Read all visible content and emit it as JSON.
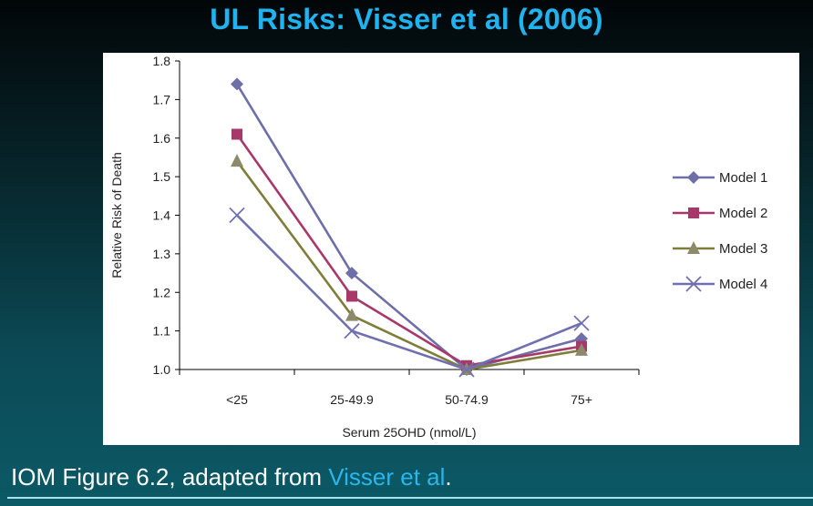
{
  "title": "UL Risks: Visser et al (2006)",
  "caption": {
    "prefix": "IOM Figure 6.2, adapted from ",
    "link": "Visser et al",
    "suffix": "."
  },
  "chart_data": {
    "type": "line",
    "xlabel": "Serum 25OHD (nmol/L)",
    "ylabel": "Relative Risk of Death",
    "categories": [
      "<25",
      "25-49.9",
      "50-74.9",
      "75+"
    ],
    "ylim": [
      1.0,
      1.8
    ],
    "yticks": [
      "1.0",
      "1.1",
      "1.2",
      "1.3",
      "1.4",
      "1.5",
      "1.6",
      "1.7",
      "1.8"
    ],
    "grid": false,
    "legend_position": "right",
    "series": [
      {
        "name": "Model 1",
        "marker": "diamond",
        "color": "#6e6ea8",
        "values": [
          1.74,
          1.25,
          1.0,
          1.08
        ]
      },
      {
        "name": "Model 2",
        "marker": "square",
        "color": "#a8386a",
        "values": [
          1.61,
          1.19,
          1.01,
          1.06
        ]
      },
      {
        "name": "Model 3",
        "marker": "triangle",
        "color": "#7f7d3a",
        "values": [
          1.54,
          1.14,
          1.0,
          1.05
        ]
      },
      {
        "name": "Model 4",
        "marker": "x",
        "color": "#7070b0",
        "values": [
          1.4,
          1.1,
          1.0,
          1.12
        ]
      }
    ]
  }
}
